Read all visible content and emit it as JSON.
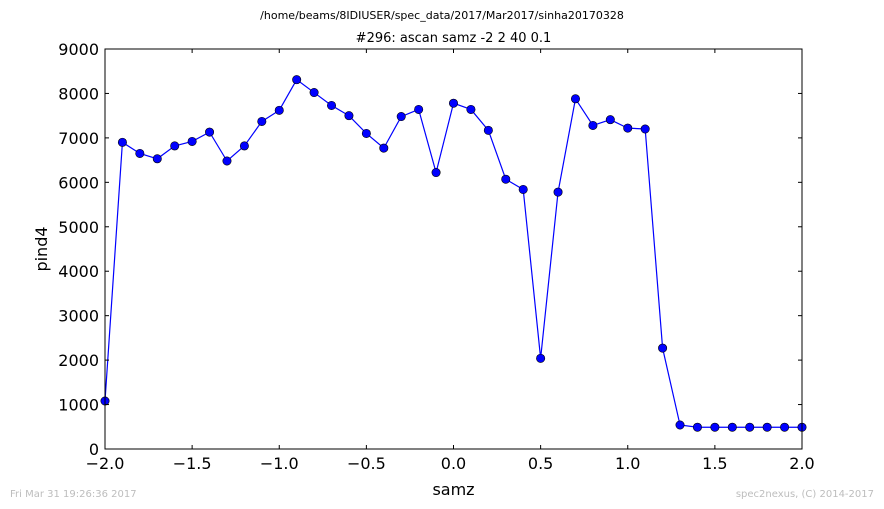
{
  "header": {
    "suptitle": "/home/beams/8IDIUSER/spec_data/2017/Mar2017/sinha20170328",
    "title": "#296: ascan  samz -2 2  40 0.1"
  },
  "footer": {
    "timestamp": "Fri Mar 31 19:26:36 2017",
    "credit": "spec2nexus, (C) 2014-2017"
  },
  "chart_data": {
    "type": "line",
    "title": "#296: ascan  samz -2 2  40 0.1",
    "xlabel": "samz",
    "ylabel": "pind4",
    "xlim": [
      -2.0,
      2.0
    ],
    "ylim": [
      0,
      9000
    ],
    "x_ticks": [
      "−2.0",
      "−1.5",
      "−1.0",
      "−0.5",
      "0.0",
      "0.5",
      "1.0",
      "1.5",
      "2.0"
    ],
    "y_ticks": [
      "0",
      "1000",
      "2000",
      "3000",
      "4000",
      "5000",
      "6000",
      "7000",
      "8000",
      "9000"
    ],
    "grid": false,
    "line_color": "#0000ff",
    "marker_color": "#0000ff",
    "marker": "circle",
    "series": [
      {
        "x": [
          -2.0,
          -1.9,
          -1.8,
          -1.7,
          -1.6,
          -1.5,
          -1.4,
          -1.3,
          -1.2,
          -1.1,
          -1.0,
          -0.9,
          -0.8,
          -0.7,
          -0.6,
          -0.5,
          -0.4,
          -0.3,
          -0.2,
          -0.1,
          0.0,
          0.1,
          0.2,
          0.3,
          0.4,
          0.5,
          0.6,
          0.7,
          0.8,
          0.9,
          1.0,
          1.1,
          1.2,
          1.3,
          1.4,
          1.5,
          1.6,
          1.7,
          1.8,
          1.9,
          2.0
        ],
        "values": [
          1080,
          6900,
          6650,
          6530,
          6820,
          6920,
          7130,
          6480,
          6820,
          7370,
          7620,
          8310,
          8020,
          7730,
          7500,
          7100,
          6770,
          7480,
          7640,
          6220,
          7780,
          7640,
          7170,
          6070,
          5840,
          2040,
          5780,
          7880,
          7280,
          7410,
          7220,
          7200,
          2270,
          540,
          490,
          490,
          490,
          490,
          490,
          490,
          490
        ]
      }
    ]
  }
}
